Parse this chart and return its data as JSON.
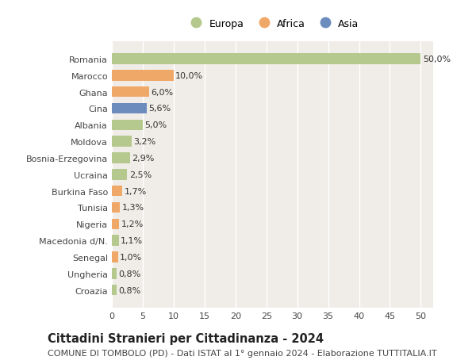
{
  "countries": [
    "Romania",
    "Marocco",
    "Ghana",
    "Cina",
    "Albania",
    "Moldova",
    "Bosnia-Erzegovina",
    "Ucraina",
    "Burkina Faso",
    "Tunisia",
    "Nigeria",
    "Macedonia d/N.",
    "Senegal",
    "Ungheria",
    "Croazia"
  ],
  "values": [
    50.0,
    10.0,
    6.0,
    5.6,
    5.0,
    3.2,
    2.9,
    2.5,
    1.7,
    1.3,
    1.2,
    1.1,
    1.0,
    0.8,
    0.8
  ],
  "labels": [
    "50,0%",
    "10,0%",
    "6,0%",
    "5,6%",
    "5,0%",
    "3,2%",
    "2,9%",
    "2,5%",
    "1,7%",
    "1,3%",
    "1,2%",
    "1,1%",
    "1,0%",
    "0,8%",
    "0,8%"
  ],
  "continents": [
    "Europa",
    "Africa",
    "Africa",
    "Asia",
    "Europa",
    "Europa",
    "Europa",
    "Europa",
    "Africa",
    "Africa",
    "Africa",
    "Europa",
    "Africa",
    "Europa",
    "Europa"
  ],
  "colors": {
    "Europa": "#b5c98e",
    "Africa": "#f0a868",
    "Asia": "#6b8cbd"
  },
  "legend_order": [
    "Europa",
    "Africa",
    "Asia"
  ],
  "xlim": [
    0,
    52
  ],
  "xticks": [
    0,
    5,
    10,
    15,
    20,
    25,
    30,
    35,
    40,
    45,
    50
  ],
  "title": "Cittadini Stranieri per Cittadinanza - 2024",
  "subtitle": "COMUNE DI TOMBOLO (PD) - Dati ISTAT al 1° gennaio 2024 - Elaborazione TUTTITALIA.IT",
  "bg_color": "#ffffff",
  "plot_bg_color": "#f0ede8",
  "grid_color": "#ffffff",
  "bar_height": 0.65,
  "label_fontsize": 8.0,
  "tick_fontsize": 8.0,
  "title_fontsize": 10.5,
  "subtitle_fontsize": 8.0,
  "legend_fontsize": 9.0
}
